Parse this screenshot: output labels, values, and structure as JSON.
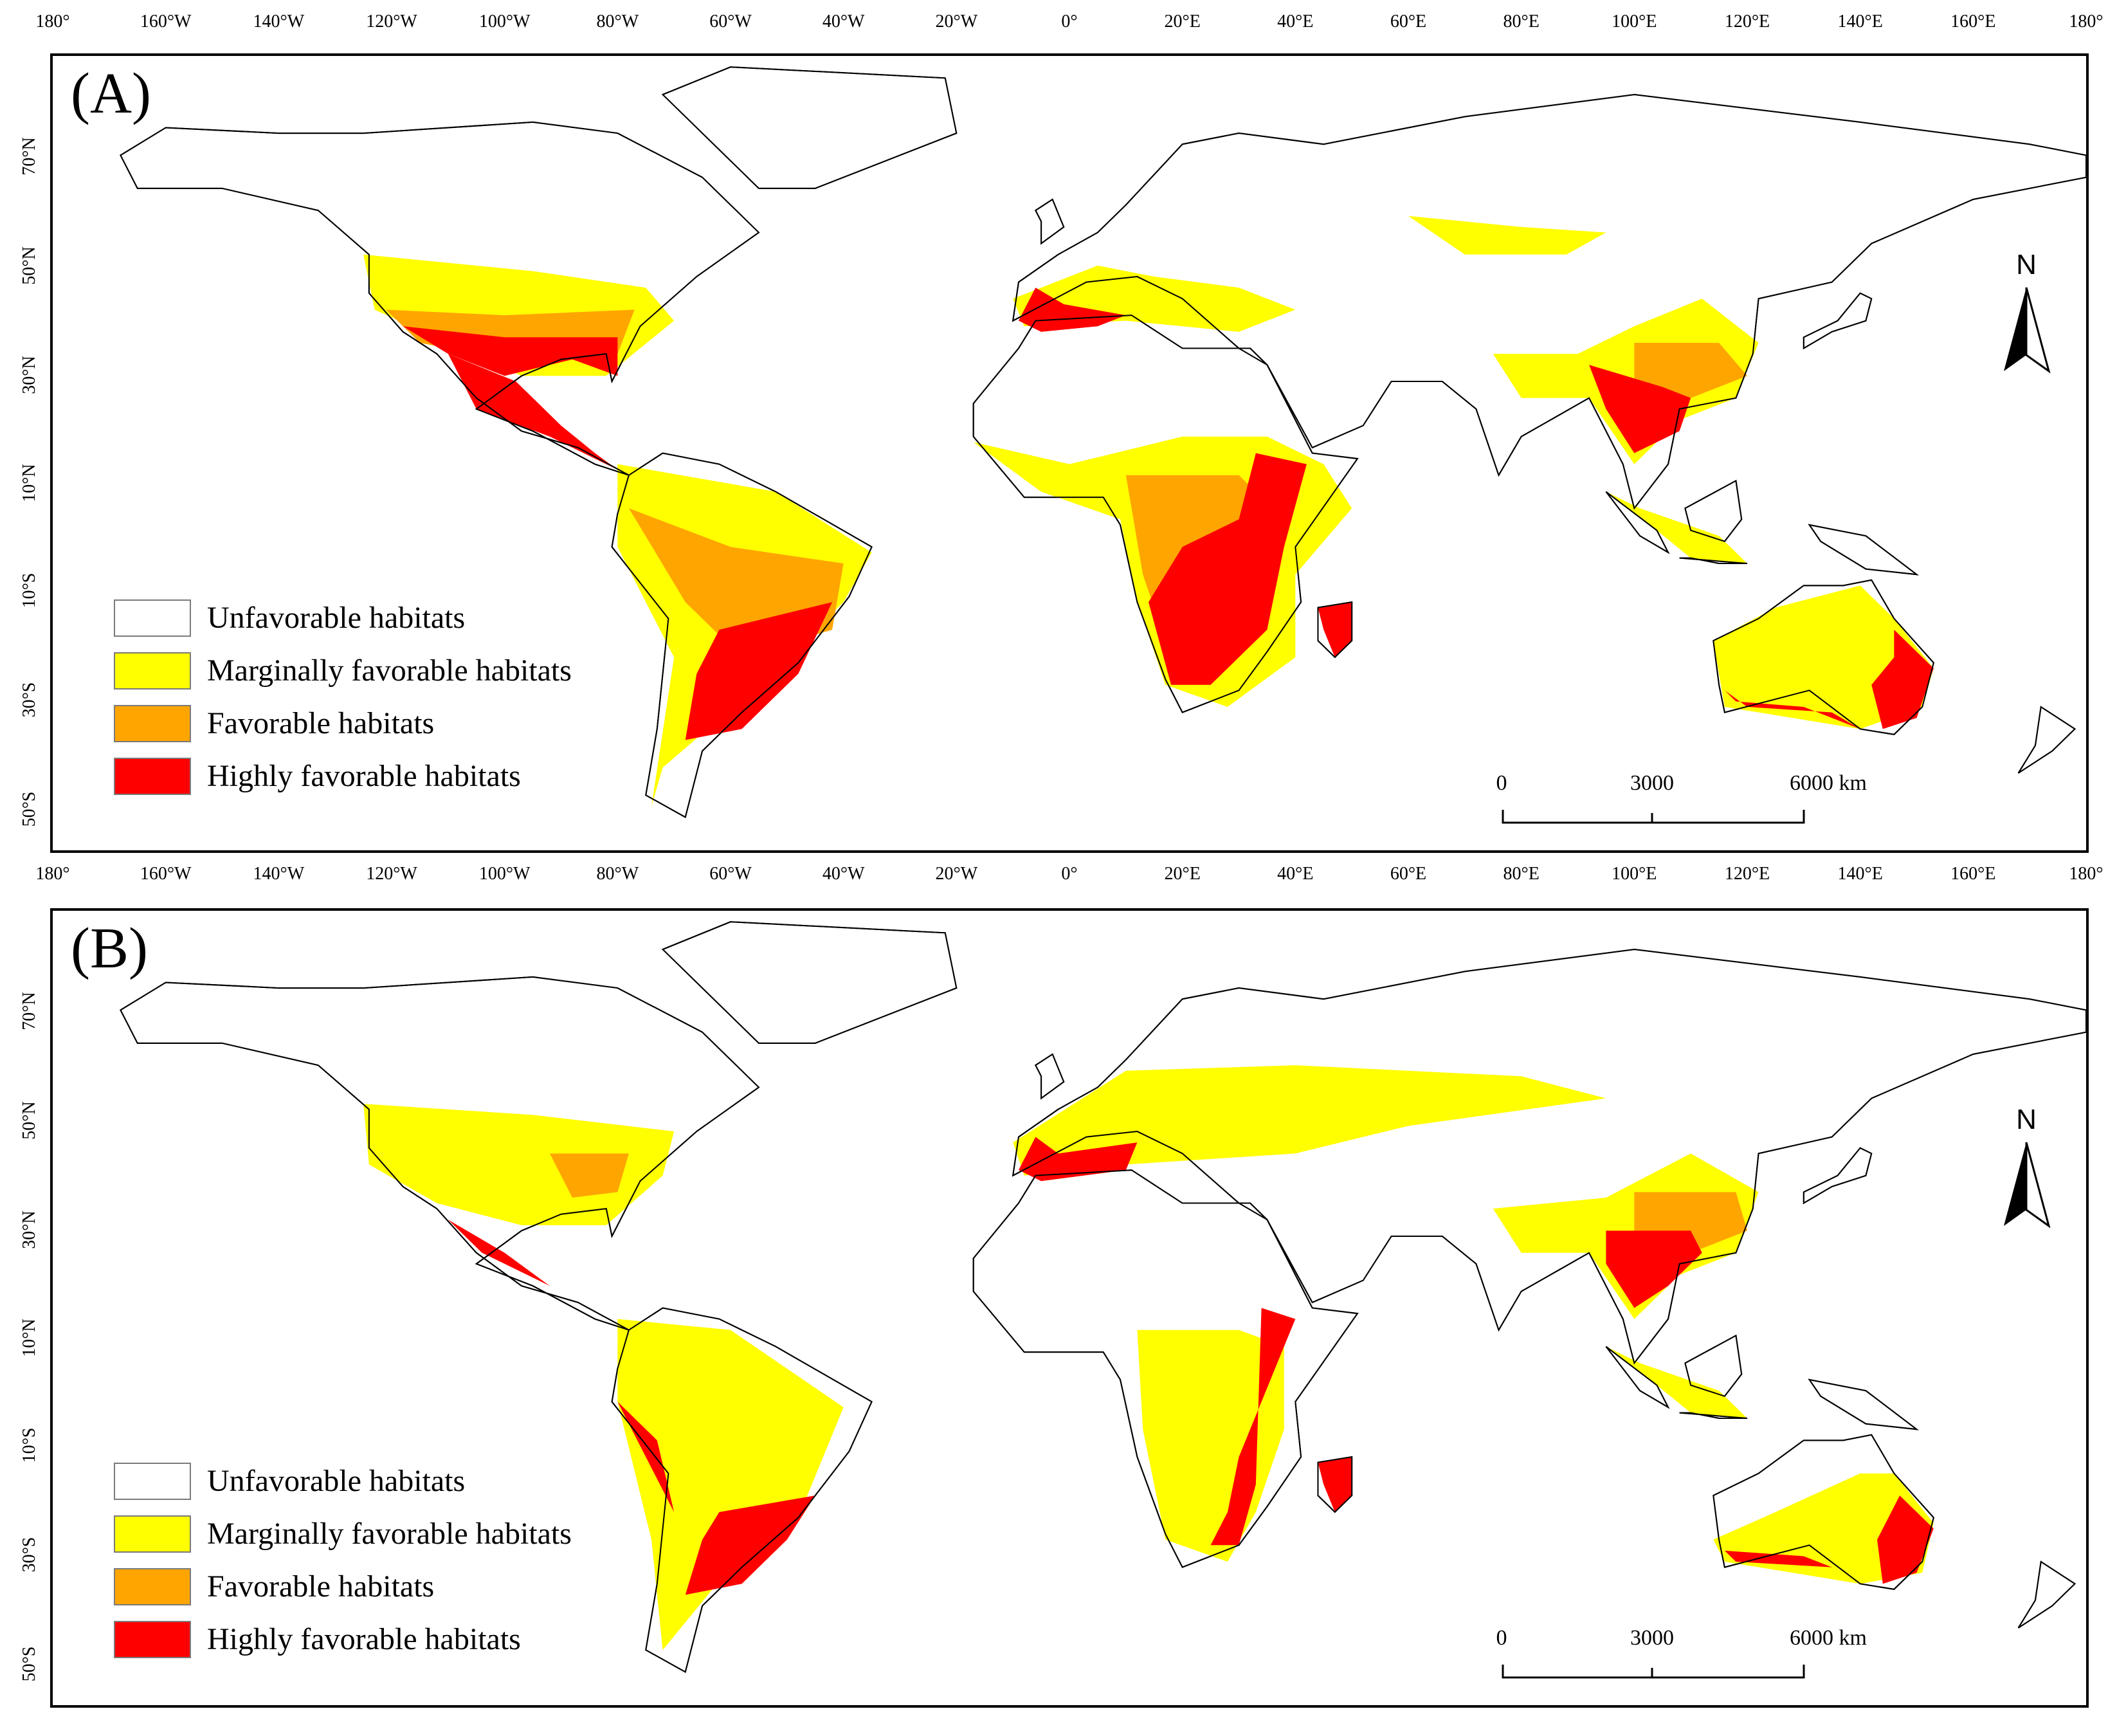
{
  "colors": {
    "unfavorable": "#ffffff",
    "marginal": "#ffff00",
    "favorable": "#ffa500",
    "high": "#ff0000"
  },
  "axes": {
    "lon_ticks": [
      "180°",
      "160°W",
      "140°W",
      "120°W",
      "100°W",
      "80°W",
      "60°W",
      "40°W",
      "20°W",
      "0°",
      "20°E",
      "40°E",
      "60°E",
      "80°E",
      "100°E",
      "120°E",
      "140°E",
      "160°E",
      "180°"
    ],
    "lat_ticks": [
      "70°N",
      "50°N",
      "30°N",
      "10°N",
      "10°S",
      "30°S",
      "50°S"
    ]
  },
  "panels": [
    {
      "letter": "(A)",
      "legend": [
        "Unfavorable habitats",
        "Marginally favorable habitats",
        "Favorable habitats",
        "Highly favorable habitats"
      ],
      "scale": {
        "labels": [
          "0",
          "3000",
          "6000 km"
        ]
      },
      "north": "N"
    },
    {
      "letter": "(B)",
      "legend": [
        "Unfavorable habitats",
        "Marginally favorable habitats",
        "Favorable habitats",
        "Highly favorable habitats"
      ],
      "scale": {
        "labels": [
          "0",
          "3000",
          "6000 km"
        ]
      },
      "north": "N"
    }
  ]
}
